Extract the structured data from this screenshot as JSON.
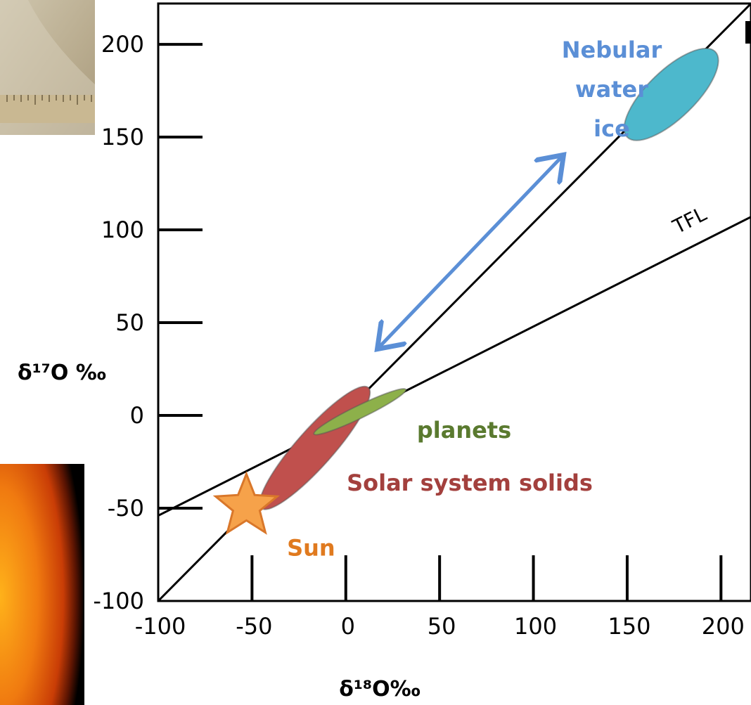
{
  "chart_data": {
    "type": "scatter",
    "x_label": "δ¹⁸O‰",
    "y_label": "δ¹⁷O ‰",
    "xlim": [
      -100,
      216
    ],
    "ylim": [
      -100,
      222
    ],
    "xticks": [
      -100,
      -50,
      0,
      50,
      100,
      150,
      200
    ],
    "yticks": [
      -100,
      -50,
      0,
      50,
      100,
      150,
      200
    ],
    "lines": [
      {
        "x": [
          -100,
          216
        ],
        "y": [
          -100,
          222
        ],
        "color": "#000000"
      },
      {
        "name": "TFL",
        "x": [
          -100,
          216
        ],
        "y": [
          -54,
          107
        ],
        "color": "#000000"
      }
    ],
    "regions": [
      {
        "label": [
          "Nebular",
          "water",
          "ice"
        ],
        "x": [
          150,
          197
        ],
        "y": [
          150,
          196
        ],
        "color": "#4db8cc",
        "label_color": "#5b8fd6"
      },
      {
        "label": [
          "Solar system solids"
        ],
        "x": [
          -45,
          12
        ],
        "y": [
          -50,
          15
        ],
        "color": "#c0504d",
        "label_color": "#a3403d"
      },
      {
        "label": [
          "planets"
        ],
        "x": [
          -17,
          32
        ],
        "y": [
          -10,
          14
        ],
        "color": "#8db04a",
        "label_color": "#5a7a2f"
      }
    ],
    "points": [
      {
        "label": "Sun",
        "x": -53,
        "y": -49,
        "color": "#f6a24a",
        "label_color": "#e07a1f"
      }
    ]
  }
}
